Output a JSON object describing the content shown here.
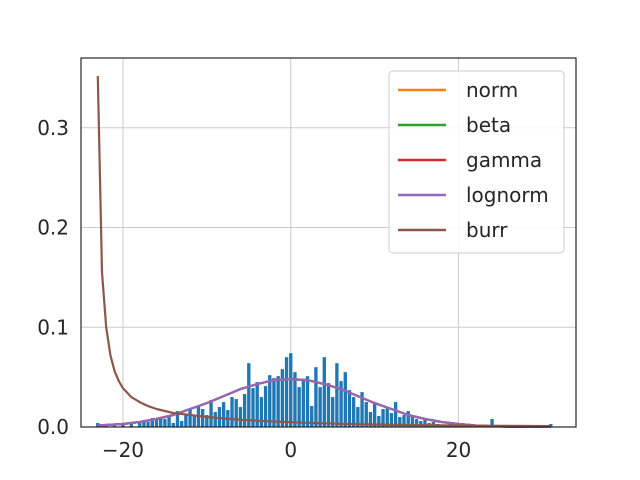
{
  "chart_data": {
    "type": "histogram_with_fitted_curves",
    "xlim": [
      -25,
      34
    ],
    "ylim": [
      0,
      0.37
    ],
    "x_ticks": [
      -20,
      0,
      20
    ],
    "y_ticks": [
      0.0,
      0.1,
      0.2,
      0.3
    ],
    "x_tick_labels": [
      "−20",
      "0",
      "20"
    ],
    "y_tick_labels": [
      "0.0",
      "0.1",
      "0.2",
      "0.3"
    ],
    "grid": true,
    "legend_position": "top-right",
    "histogram": {
      "color": "#1f77b4",
      "bin_width": 0.5,
      "bins": [
        {
          "x": -23,
          "y": 0.004
        },
        {
          "x": -22,
          "y": 0.003
        },
        {
          "x": -21,
          "y": 0.003
        },
        {
          "x": -20,
          "y": 0.002
        },
        {
          "x": -19,
          "y": 0.004
        },
        {
          "x": -18,
          "y": 0.004
        },
        {
          "x": -17.5,
          "y": 0.006
        },
        {
          "x": -17,
          "y": 0.005
        },
        {
          "x": -16.5,
          "y": 0.009
        },
        {
          "x": -16,
          "y": 0.008
        },
        {
          "x": -15.5,
          "y": 0.01
        },
        {
          "x": -15,
          "y": 0.008
        },
        {
          "x": -14.5,
          "y": 0.012
        },
        {
          "x": -14,
          "y": 0.004
        },
        {
          "x": -13.5,
          "y": 0.016
        },
        {
          "x": -13,
          "y": 0.006
        },
        {
          "x": -12.5,
          "y": 0.012
        },
        {
          "x": -12,
          "y": 0.018
        },
        {
          "x": -11.5,
          "y": 0.012
        },
        {
          "x": -11,
          "y": 0.021
        },
        {
          "x": -10.5,
          "y": 0.018
        },
        {
          "x": -10,
          "y": 0.012
        },
        {
          "x": -9.5,
          "y": 0.027
        },
        {
          "x": -9,
          "y": 0.015
        },
        {
          "x": -8.5,
          "y": 0.02
        },
        {
          "x": -8,
          "y": 0.025
        },
        {
          "x": -7.5,
          "y": 0.017
        },
        {
          "x": -7,
          "y": 0.03
        },
        {
          "x": -6.5,
          "y": 0.028
        },
        {
          "x": -6,
          "y": 0.02
        },
        {
          "x": -5.5,
          "y": 0.033
        },
        {
          "x": -5,
          "y": 0.064
        },
        {
          "x": -4.5,
          "y": 0.039
        },
        {
          "x": -4,
          "y": 0.045
        },
        {
          "x": -3.5,
          "y": 0.03
        },
        {
          "x": -3,
          "y": 0.041
        },
        {
          "x": -2.5,
          "y": 0.052
        },
        {
          "x": -2,
          "y": 0.049
        },
        {
          "x": -1.5,
          "y": 0.051
        },
        {
          "x": -1,
          "y": 0.058
        },
        {
          "x": -0.5,
          "y": 0.07
        },
        {
          "x": 0,
          "y": 0.074
        },
        {
          "x": 0.5,
          "y": 0.055
        },
        {
          "x": 1,
          "y": 0.04
        },
        {
          "x": 1.5,
          "y": 0.048
        },
        {
          "x": 2,
          "y": 0.051
        },
        {
          "x": 2.5,
          "y": 0.021
        },
        {
          "x": 3,
          "y": 0.06
        },
        {
          "x": 3.5,
          "y": 0.04
        },
        {
          "x": 4,
          "y": 0.07
        },
        {
          "x": 4.5,
          "y": 0.044
        },
        {
          "x": 5,
          "y": 0.03
        },
        {
          "x": 5.5,
          "y": 0.064
        },
        {
          "x": 6,
          "y": 0.046
        },
        {
          "x": 6.5,
          "y": 0.055
        },
        {
          "x": 7,
          "y": 0.037
        },
        {
          "x": 7.5,
          "y": 0.03
        },
        {
          "x": 8,
          "y": 0.02
        },
        {
          "x": 8.5,
          "y": 0.035
        },
        {
          "x": 9,
          "y": 0.025
        },
        {
          "x": 9.5,
          "y": 0.015
        },
        {
          "x": 10,
          "y": 0.025
        },
        {
          "x": 10.5,
          "y": 0.011
        },
        {
          "x": 11,
          "y": 0.018
        },
        {
          "x": 11.5,
          "y": 0.02
        },
        {
          "x": 12,
          "y": 0.014
        },
        {
          "x": 12.5,
          "y": 0.025
        },
        {
          "x": 13,
          "y": 0.01
        },
        {
          "x": 13.5,
          "y": 0.012
        },
        {
          "x": 14,
          "y": 0.016
        },
        {
          "x": 14.5,
          "y": 0.012
        },
        {
          "x": 15,
          "y": 0.008
        },
        {
          "x": 15.5,
          "y": 0.006
        },
        {
          "x": 16,
          "y": 0.008
        },
        {
          "x": 16.5,
          "y": 0.004
        },
        {
          "x": 17,
          "y": 0.005
        },
        {
          "x": 17.5,
          "y": 0.003
        },
        {
          "x": 18,
          "y": 0.002
        },
        {
          "x": 19,
          "y": 0.003
        },
        {
          "x": 20,
          "y": 0.003
        },
        {
          "x": 24,
          "y": 0.008
        },
        {
          "x": 31,
          "y": 0.003
        }
      ]
    },
    "series": [
      {
        "name": "norm",
        "color": "#ff7f0e",
        "x": [
          -23,
          -20,
          -18,
          -16,
          -14,
          -12,
          -10,
          -8,
          -6,
          -4,
          -2,
          0,
          2,
          4,
          6,
          8,
          10,
          12,
          14,
          16,
          18,
          20,
          22,
          24,
          26,
          28,
          31
        ],
        "y": [
          0.0015,
          0.003,
          0.005,
          0.008,
          0.012,
          0.018,
          0.024,
          0.031,
          0.038,
          0.043,
          0.047,
          0.048,
          0.047,
          0.043,
          0.038,
          0.031,
          0.024,
          0.018,
          0.012,
          0.008,
          0.005,
          0.003,
          0.0015,
          0.0008,
          0.0004,
          0.0002,
          0.0001
        ]
      },
      {
        "name": "beta",
        "color": "#2ca02c",
        "x": [
          -23,
          -20,
          -18,
          -16,
          -14,
          -12,
          -10,
          -8,
          -6,
          -4,
          -2,
          0,
          2,
          4,
          6,
          8,
          10,
          12,
          14,
          16,
          18,
          20,
          22,
          24,
          26,
          28,
          31
        ],
        "y": [
          0.0015,
          0.003,
          0.005,
          0.008,
          0.012,
          0.018,
          0.024,
          0.031,
          0.038,
          0.043,
          0.047,
          0.048,
          0.047,
          0.043,
          0.038,
          0.031,
          0.024,
          0.018,
          0.012,
          0.008,
          0.005,
          0.003,
          0.0015,
          0.0008,
          0.0004,
          0.0002,
          0.0001
        ]
      },
      {
        "name": "gamma",
        "color": "#d62728",
        "x": [
          -23,
          -20,
          -18,
          -16,
          -14,
          -12,
          -10,
          -8,
          -6,
          -4,
          -2,
          0,
          2,
          4,
          6,
          8,
          10,
          12,
          14,
          16,
          18,
          20,
          22,
          24,
          26,
          28,
          31
        ],
        "y": [
          0.0015,
          0.003,
          0.005,
          0.008,
          0.012,
          0.018,
          0.024,
          0.031,
          0.038,
          0.043,
          0.047,
          0.048,
          0.047,
          0.043,
          0.038,
          0.031,
          0.024,
          0.018,
          0.012,
          0.008,
          0.005,
          0.003,
          0.0015,
          0.0008,
          0.0004,
          0.0002,
          0.0001
        ]
      },
      {
        "name": "lognorm",
        "color": "#9467bd",
        "x": [
          -23,
          -20,
          -18,
          -16,
          -14,
          -12,
          -10,
          -8,
          -6,
          -4,
          -2,
          0,
          2,
          4,
          6,
          8,
          10,
          12,
          14,
          16,
          18,
          20,
          22,
          24,
          26,
          28,
          31
        ],
        "y": [
          0.0015,
          0.003,
          0.005,
          0.008,
          0.012,
          0.018,
          0.024,
          0.031,
          0.038,
          0.043,
          0.047,
          0.048,
          0.047,
          0.043,
          0.038,
          0.031,
          0.024,
          0.018,
          0.012,
          0.008,
          0.005,
          0.003,
          0.0015,
          0.0008,
          0.0004,
          0.0002,
          0.0001
        ]
      },
      {
        "name": "burr",
        "color": "#8c564b",
        "x": [
          -23,
          -22.5,
          -22,
          -21.5,
          -21,
          -20.5,
          -20,
          -19,
          -18,
          -17,
          -16,
          -15,
          -14,
          -12,
          -10,
          -8,
          -6,
          -4,
          -2,
          0,
          2,
          4,
          6,
          8,
          10,
          14,
          18,
          22,
          26,
          31
        ],
        "y": [
          0.352,
          0.155,
          0.1,
          0.072,
          0.056,
          0.046,
          0.039,
          0.03,
          0.025,
          0.021,
          0.018,
          0.016,
          0.014,
          0.012,
          0.01,
          0.0085,
          0.0073,
          0.0063,
          0.0055,
          0.0048,
          0.0042,
          0.0037,
          0.0032,
          0.0028,
          0.0025,
          0.002,
          0.0016,
          0.0013,
          0.0011,
          0.0009
        ]
      }
    ]
  }
}
